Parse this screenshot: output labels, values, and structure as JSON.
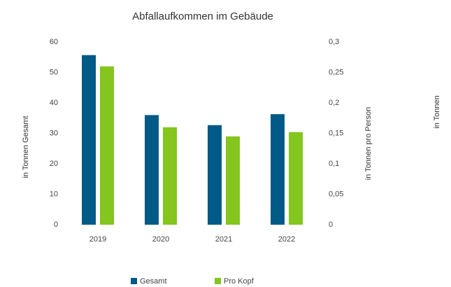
{
  "chart_data": {
    "type": "bar",
    "title": "Abfallaufkommen im Gebäude",
    "y_label": "in Tonnen Gesamt",
    "y2_label": "in Tonnen pro Person",
    "y3_label": "in Tonnen",
    "categories": [
      "2019",
      "2020",
      "2021",
      "2022"
    ],
    "series": [
      {
        "name": "Gesamt",
        "color": "#005a87",
        "values": [
          55.7,
          36,
          32.7,
          36.3
        ]
      },
      {
        "name": "Pro Kopf",
        "color": "#84c51e",
        "axis": "y2",
        "values": [
          0.26,
          0.16,
          0.145,
          0.152
        ]
      }
    ],
    "ylim": [
      0,
      60
    ],
    "yticks": [
      0,
      10,
      20,
      30,
      40,
      50,
      60
    ],
    "y2lim": [
      0,
      0.3
    ],
    "y2ticks": [
      0,
      {
        "value": 0.05,
        "label": "0,05"
      },
      {
        "value": 0.1,
        "label": "0,1"
      },
      {
        "value": 0.15,
        "label": "0,15"
      },
      {
        "value": 0.2,
        "label": "0,2"
      },
      {
        "value": 0.25,
        "label": "0,25"
      },
      {
        "value": 0.3,
        "label": "0,3"
      }
    ],
    "grid": false,
    "legend": "bottom"
  }
}
